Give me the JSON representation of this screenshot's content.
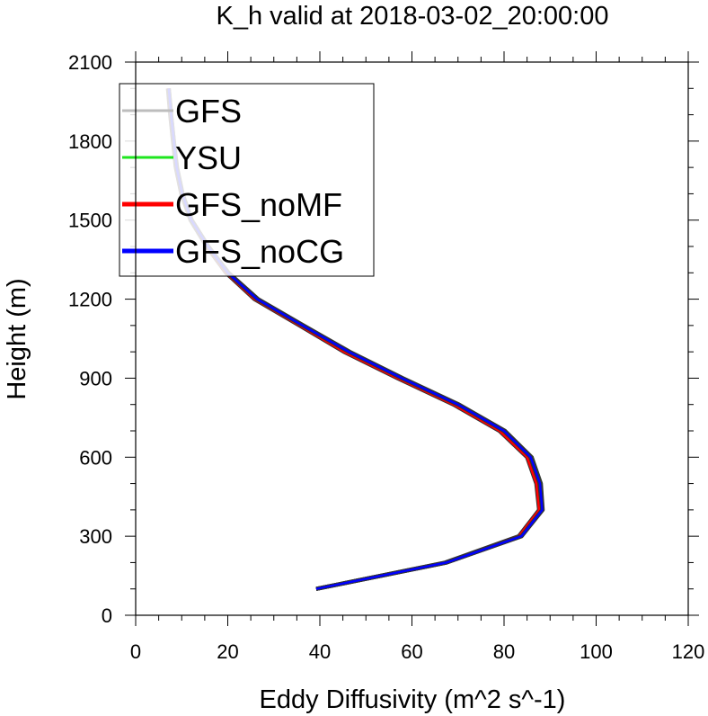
{
  "chart_data": {
    "type": "line",
    "title": "K_h valid at 2018-03-02_20:00:00",
    "xlabel": "Eddy Diffusivity (m^2 s^-1)",
    "ylabel": "Height (m)",
    "xlim": [
      0,
      120
    ],
    "ylim": [
      0,
      2100
    ],
    "xticks": [
      0,
      20,
      40,
      60,
      80,
      100,
      120
    ],
    "yticks": [
      0,
      300,
      600,
      900,
      1200,
      1500,
      1800,
      2100
    ],
    "grid": false,
    "legend_position": "top-left",
    "series": [
      {
        "name": "GFS",
        "color": "#bdbdbd",
        "points": [
          [
            39.2,
            100
          ],
          [
            67.5,
            200
          ],
          [
            83.5,
            300
          ],
          [
            87.8,
            400
          ],
          [
            87.2,
            500
          ],
          [
            85.2,
            600
          ],
          [
            79.2,
            700
          ],
          [
            69.2,
            800
          ],
          [
            57.0,
            900
          ],
          [
            45.5,
            1000
          ],
          [
            35.8,
            1100
          ],
          [
            26.0,
            1200
          ],
          [
            19.8,
            1300
          ],
          [
            15.5,
            1400
          ],
          [
            12.0,
            1500
          ],
          [
            10.0,
            1600
          ],
          [
            8.8,
            1700
          ],
          [
            8.2,
            1800
          ],
          [
            7.6,
            1900
          ],
          [
            7.1,
            2000
          ]
        ]
      },
      {
        "name": "YSU",
        "color": "#1ee61e",
        "points": [
          [
            39.2,
            100
          ],
          [
            67.5,
            200
          ],
          [
            83.8,
            300
          ],
          [
            88.4,
            400
          ],
          [
            88.0,
            500
          ],
          [
            86.0,
            600
          ],
          [
            80.2,
            700
          ],
          [
            70.2,
            800
          ],
          [
            58.0,
            900
          ],
          [
            46.5,
            1000
          ],
          [
            36.5,
            1100
          ],
          [
            26.6,
            1200
          ],
          [
            20.2,
            1300
          ],
          [
            15.8,
            1400
          ],
          [
            12.2,
            1500
          ],
          [
            10.2,
            1600
          ],
          [
            9.0,
            1700
          ],
          [
            8.3,
            1800
          ],
          [
            7.7,
            1900
          ],
          [
            7.2,
            2000
          ]
        ]
      },
      {
        "name": "GFS_noMF",
        "color": "#ff0000",
        "points": [
          [
            39.2,
            100
          ],
          [
            67.2,
            200
          ],
          [
            83.2,
            300
          ],
          [
            87.6,
            400
          ],
          [
            87.0,
            500
          ],
          [
            85.0,
            600
          ],
          [
            79.0,
            700
          ],
          [
            69.0,
            800
          ],
          [
            56.8,
            900
          ],
          [
            45.2,
            1000
          ],
          [
            35.6,
            1100
          ],
          [
            25.8,
            1200
          ],
          [
            19.6,
            1300
          ],
          [
            15.4,
            1400
          ],
          [
            11.9,
            1500
          ],
          [
            9.9,
            1600
          ],
          [
            8.7,
            1700
          ],
          [
            8.1,
            1800
          ],
          [
            7.5,
            1900
          ],
          [
            7.0,
            2000
          ]
        ]
      },
      {
        "name": "GFS_noCG",
        "color": "#0000ff",
        "points": [
          [
            39.2,
            100
          ],
          [
            67.5,
            200
          ],
          [
            83.8,
            300
          ],
          [
            88.3,
            400
          ],
          [
            87.8,
            500
          ],
          [
            85.8,
            600
          ],
          [
            80.0,
            700
          ],
          [
            70.0,
            800
          ],
          [
            57.8,
            900
          ],
          [
            46.3,
            1000
          ],
          [
            36.3,
            1100
          ],
          [
            26.4,
            1200
          ],
          [
            20.0,
            1300
          ],
          [
            15.7,
            1400
          ],
          [
            12.1,
            1500
          ],
          [
            10.1,
            1600
          ],
          [
            8.9,
            1700
          ],
          [
            8.3,
            1800
          ],
          [
            7.7,
            1900
          ],
          [
            7.2,
            2000
          ]
        ]
      }
    ]
  }
}
